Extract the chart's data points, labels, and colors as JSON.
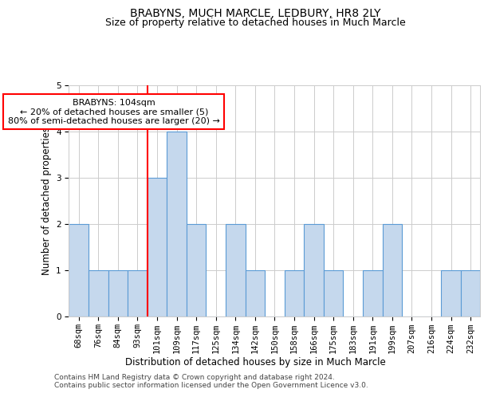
{
  "title": "BRABYNS, MUCH MARCLE, LEDBURY, HR8 2LY",
  "subtitle": "Size of property relative to detached houses in Much Marcle",
  "xlabel": "Distribution of detached houses by size in Much Marcle",
  "ylabel": "Number of detached properties",
  "footnote1": "Contains HM Land Registry data © Crown copyright and database right 2024.",
  "footnote2": "Contains public sector information licensed under the Open Government Licence v3.0.",
  "bin_labels": [
    "68sqm",
    "76sqm",
    "84sqm",
    "93sqm",
    "101sqm",
    "109sqm",
    "117sqm",
    "125sqm",
    "134sqm",
    "142sqm",
    "150sqm",
    "158sqm",
    "166sqm",
    "175sqm",
    "183sqm",
    "191sqm",
    "199sqm",
    "207sqm",
    "216sqm",
    "224sqm",
    "232sqm"
  ],
  "bar_values": [
    2,
    1,
    1,
    1,
    3,
    4,
    2,
    0,
    2,
    1,
    0,
    1,
    2,
    1,
    0,
    1,
    2,
    0,
    0,
    1,
    1
  ],
  "bar_color": "#c5d8ed",
  "bar_edge_color": "#5b9bd5",
  "red_line_index": 4,
  "annotation_text": "BRABYNS: 104sqm\n← 20% of detached houses are smaller (5)\n80% of semi-detached houses are larger (20) →",
  "annotation_box_color": "white",
  "annotation_box_edge": "red",
  "ylim": [
    0,
    5
  ],
  "yticks": [
    0,
    1,
    2,
    3,
    4,
    5
  ],
  "background_color": "white",
  "grid_color": "#cccccc",
  "title_fontsize": 10,
  "subtitle_fontsize": 9,
  "axis_label_fontsize": 8.5,
  "tick_fontsize": 7.5,
  "annotation_fontsize": 8,
  "footnote_fontsize": 6.5
}
